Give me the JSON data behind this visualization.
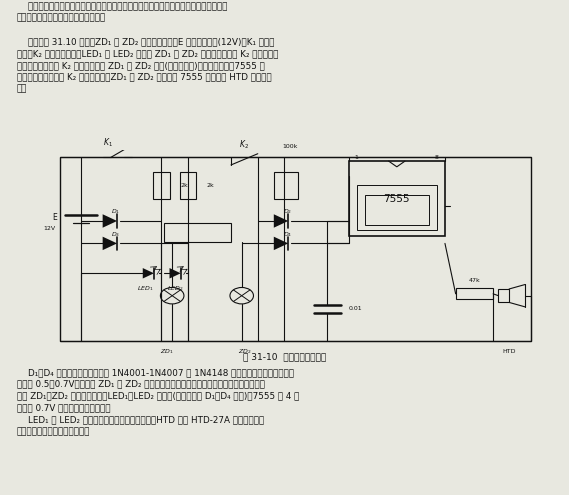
{
  "bg_color": "#e8e8e0",
  "circuit_bg": "#e8e8e0",
  "text_color": "#111111",
  "title_text": "图 31-10  汽车制动灯监视器",
  "para1_lines": [
    "    该监视器用于监视汽车制动灯是否正常无损，一旦制动灯有故障不能照明，立即报警指",
    "示，提示排除故障，以保证安全行驶。"
  ],
  "para2_lines": [
    "    电路如图 31.10 所示，ZD₁ 和 ZD₂ 是汽车制动灯，E 是车上蓄电瓶(12V)，K₁ 是点火",
    "开关，K₂ 是制动灯开关，LED₁ 和 LED₂ 分别是 ZD₁ 和 ZD₂ 监视指示灯，在 K₂ 断开不照明",
    "时均不发光，仅在 K₂ 连通照明或者 ZD₁ 或 ZD₂ 开路(断丝或断线)时才发光指示。7555 构",
    "成多谐振荡电路，在 K₂ 断开状态下，ZD₁ 和 ZD₂ 都开路时 7555 振荡，由 HTD 发出报警",
    "声。"
  ],
  "para3_lines": [
    "    D₁～D₄ 是隔离二极管，可使用 1N4001-1N4007 及 1N4148 中任何一种型号。其导通电",
    "压降为 0.5～0.7V，又因为 ZD₁ 和 ZD₂ 在不通电照明冷态下电阔值极小，可认为是短路，所",
    "以在 ZD₁、ZD₂ 不加电状态下，LED₁、LED₂ 不会亮(压降基本同 D₁～D₄ 压降)，7555 第 4 脚",
    "电压在 0.7V 以内故处于复位状态。"
  ],
  "para4_lines": [
    "    LED₁ 和 LED₂ 可采用红色或绿色发光二极管，HTD 可用 HTD-27A 型压电式扬声",
    "器，其余元器件均无特殊要求。"
  ]
}
